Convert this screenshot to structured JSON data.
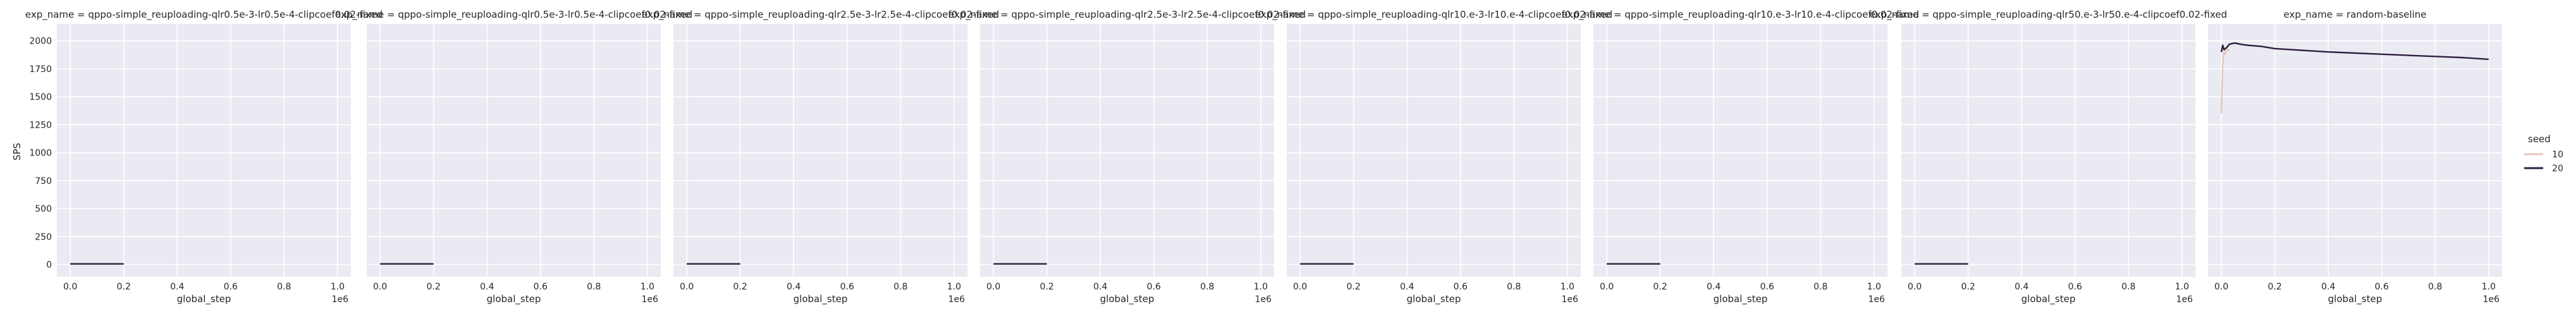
{
  "figure": {
    "shared_ylabel": "SPS",
    "legend": {
      "title": "seed",
      "placement": "right",
      "entries": [
        {
          "label": "10",
          "color": "#e8c5c0"
        },
        {
          "label": "20",
          "color": "#2d1e3e"
        }
      ]
    },
    "colors": {
      "panel_background": "#eaeaf2",
      "grid": "#ffffff",
      "text": "#262626"
    }
  },
  "chart_data": [
    {
      "type": "line",
      "title": "exp_name = qppo-simple_reuploading-qlr0.5e-3-lr0.5e-4-clipcoef0.02-fixed",
      "xlabel": "global_step",
      "ylabel": "SPS",
      "x_offset_label": "1e6",
      "xlim": [
        -0.05,
        1.05
      ],
      "ylim": [
        -110,
        2150
      ],
      "xticks": [
        "0.0",
        "0.2",
        "0.4",
        "0.6",
        "0.8",
        "1.0"
      ],
      "yticks": [
        "0",
        "250",
        "500",
        "750",
        "1000",
        "1250",
        "1500",
        "1750",
        "2000"
      ],
      "grid": true,
      "series": [
        {
          "name": "20",
          "color": "#2d1e3e",
          "x": [
            0.0,
            0.2
          ],
          "y": [
            5,
            5
          ]
        }
      ]
    },
    {
      "type": "line",
      "title": "exp_name = qppo-simple_reuploading-qlr0.5e-3-lr0.5e-4-clipcoef0.02-fixed",
      "xlabel": "global_step",
      "ylabel": "",
      "x_offset_label": "1e6",
      "xlim": [
        -0.05,
        1.05
      ],
      "ylim": [
        -110,
        2150
      ],
      "xticks": [
        "0.0",
        "0.2",
        "0.4",
        "0.6",
        "0.8",
        "1.0"
      ],
      "yticks": [],
      "grid": true,
      "series": [
        {
          "name": "20",
          "color": "#2d1e3e",
          "x": [
            0.0,
            0.2
          ],
          "y": [
            5,
            5
          ]
        }
      ]
    },
    {
      "type": "line",
      "title": "exp_name = qppo-simple_reuploading-qlr2.5e-3-lr2.5e-4-clipcoef0.02-fixed",
      "xlabel": "global_step",
      "ylabel": "",
      "x_offset_label": "1e6",
      "xlim": [
        -0.05,
        1.05
      ],
      "ylim": [
        -110,
        2150
      ],
      "xticks": [
        "0.0",
        "0.2",
        "0.4",
        "0.6",
        "0.8",
        "1.0"
      ],
      "yticks": [],
      "grid": true,
      "series": [
        {
          "name": "20",
          "color": "#2d1e3e",
          "x": [
            0.0,
            0.2
          ],
          "y": [
            5,
            5
          ]
        }
      ]
    },
    {
      "type": "line",
      "title": "exp_name = qppo-simple_reuploading-qlr2.5e-3-lr2.5e-4-clipcoef0.02-fixed",
      "xlabel": "global_step",
      "ylabel": "",
      "x_offset_label": "1e6",
      "xlim": [
        -0.05,
        1.05
      ],
      "ylim": [
        -110,
        2150
      ],
      "xticks": [
        "0.0",
        "0.2",
        "0.4",
        "0.6",
        "0.8",
        "1.0"
      ],
      "yticks": [],
      "grid": true,
      "series": [
        {
          "name": "20",
          "color": "#2d1e3e",
          "x": [
            0.0,
            0.2
          ],
          "y": [
            5,
            5
          ]
        }
      ]
    },
    {
      "type": "line",
      "title": "exp_name = qppo-simple_reuploading-qlr10.e-3-lr10.e-4-clipcoef0.02-fixed",
      "xlabel": "global_step",
      "ylabel": "",
      "x_offset_label": "1e6",
      "xlim": [
        -0.05,
        1.05
      ],
      "ylim": [
        -110,
        2150
      ],
      "xticks": [
        "0.0",
        "0.2",
        "0.4",
        "0.6",
        "0.8",
        "1.0"
      ],
      "yticks": [],
      "grid": true,
      "series": [
        {
          "name": "20",
          "color": "#2d1e3e",
          "x": [
            0.0,
            0.2
          ],
          "y": [
            5,
            5
          ]
        }
      ]
    },
    {
      "type": "line",
      "title": "exp_name = qppo-simple_reuploading-qlr10.e-3-lr10.e-4-clipcoef0.02-fixed",
      "xlabel": "global_step",
      "ylabel": "",
      "x_offset_label": "1e6",
      "xlim": [
        -0.05,
        1.05
      ],
      "ylim": [
        -110,
        2150
      ],
      "xticks": [
        "0.0",
        "0.2",
        "0.4",
        "0.6",
        "0.8",
        "1.0"
      ],
      "yticks": [],
      "grid": true,
      "series": [
        {
          "name": "20",
          "color": "#2d1e3e",
          "x": [
            0.0,
            0.2
          ],
          "y": [
            5,
            5
          ]
        }
      ]
    },
    {
      "type": "line",
      "title": "exp_name = qppo-simple_reuploading-qlr50.e-3-lr50.e-4-clipcoef0.02-fixed",
      "xlabel": "global_step",
      "ylabel": "",
      "x_offset_label": "1e6",
      "xlim": [
        -0.05,
        1.05
      ],
      "ylim": [
        -110,
        2150
      ],
      "xticks": [
        "0.0",
        "0.2",
        "0.4",
        "0.6",
        "0.8",
        "1.0"
      ],
      "yticks": [],
      "grid": true,
      "series": [
        {
          "name": "20",
          "color": "#2d1e3e",
          "x": [
            0.0,
            0.2
          ],
          "y": [
            5,
            5
          ]
        }
      ]
    },
    {
      "type": "line",
      "title": "exp_name = random-baseline",
      "xlabel": "global_step",
      "ylabel": "",
      "x_offset_label": "1e6",
      "xlim": [
        -0.05,
        1.05
      ],
      "ylim": [
        -110,
        2150
      ],
      "xticks": [
        "0.0",
        "0.2",
        "0.4",
        "0.6",
        "0.8",
        "1.0"
      ],
      "yticks": [],
      "grid": true,
      "series": [
        {
          "name": "10",
          "color": "#e8c5c0",
          "x": [
            0.0,
            0.005,
            0.01,
            0.015,
            0.02,
            0.03
          ],
          "y": [
            1350,
            1800,
            1900,
            1880,
            1920,
            1910
          ]
        },
        {
          "name": "20",
          "color": "#2d1e3e",
          "x": [
            0.0,
            0.005,
            0.01,
            0.02,
            0.03,
            0.05,
            0.08,
            0.1,
            0.15,
            0.2,
            0.3,
            0.4,
            0.5,
            0.6,
            0.7,
            0.8,
            0.9,
            1.0
          ],
          "y": [
            1900,
            1960,
            1920,
            1940,
            1970,
            1980,
            1965,
            1960,
            1950,
            1930,
            1915,
            1900,
            1890,
            1880,
            1870,
            1860,
            1850,
            1835
          ]
        }
      ]
    }
  ]
}
